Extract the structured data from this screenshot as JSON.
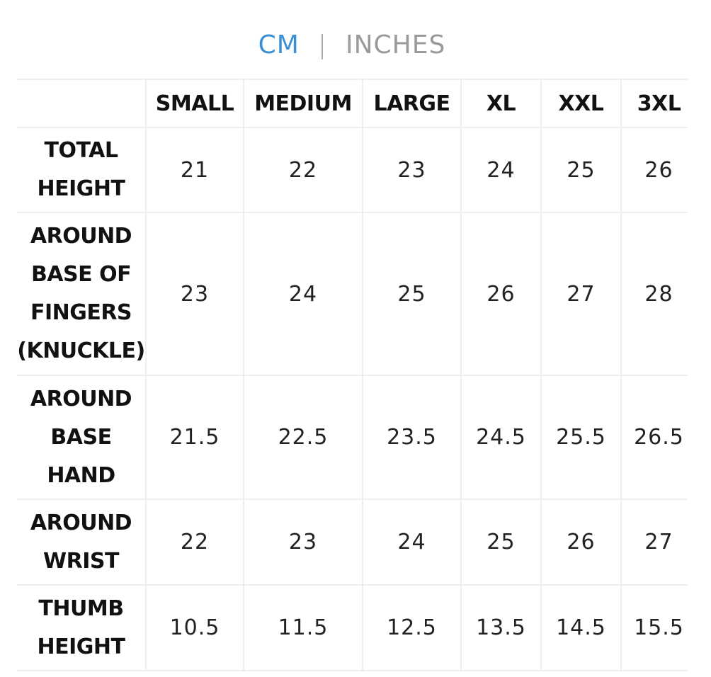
{
  "unit_toggle": {
    "cm_label": "CM",
    "separator": "|",
    "inches_label": "INCHES",
    "active_color": "#3a8fd4",
    "inactive_color": "#9a9a9a"
  },
  "table": {
    "corner": "",
    "columns": [
      "SMALL",
      "MEDIUM",
      "LARGE",
      "XL",
      "XXL",
      "3XL"
    ],
    "rows": [
      {
        "label_lines": [
          "TOTAL",
          "HEIGHT"
        ],
        "values": [
          "21",
          "22",
          "23",
          "24",
          "25",
          "26"
        ]
      },
      {
        "label_lines": [
          "AROUND",
          "BASE OF",
          "FINGERS",
          "(KNUCKLE)"
        ],
        "values": [
          "23",
          "24",
          "25",
          "26",
          "27",
          "28"
        ]
      },
      {
        "label_lines": [
          "AROUND",
          "BASE",
          "HAND"
        ],
        "values": [
          "21.5",
          "22.5",
          "23.5",
          "24.5",
          "25.5",
          "26.5"
        ]
      },
      {
        "label_lines": [
          "AROUND",
          "WRIST"
        ],
        "values": [
          "22",
          "23",
          "24",
          "25",
          "26",
          "27"
        ]
      },
      {
        "label_lines": [
          "THUMB",
          "HEIGHT"
        ],
        "values": [
          "10.5",
          "11.5",
          "12.5",
          "13.5",
          "14.5",
          "15.5"
        ]
      }
    ]
  }
}
